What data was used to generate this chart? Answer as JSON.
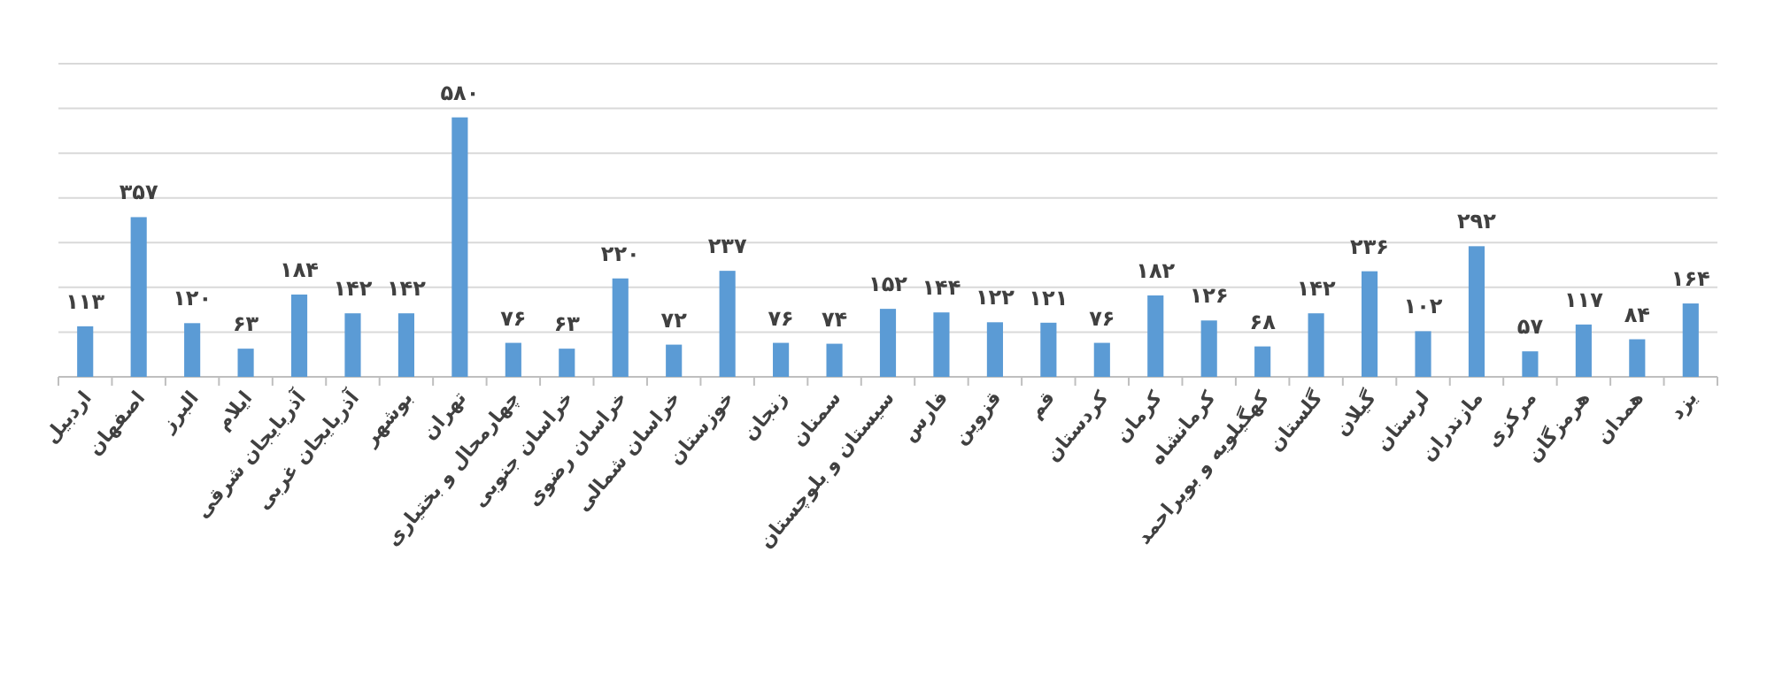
{
  "chart_data": {
    "type": "bar",
    "categories": [
      "اردبیل",
      "اصفهان",
      "البرز",
      "ایلام",
      "آذربایجان شرقی",
      "آذربایجان غربی",
      "بوشهر",
      "تهران",
      "چهارمحال و بختیاری",
      "خراسان جنوبی",
      "خراسان رضوی",
      "خراسان شمالی",
      "خوزستان",
      "زنجان",
      "سمنان",
      "سیستان و بلوچستان",
      "فارس",
      "قزوین",
      "قم",
      "کردستان",
      "کرمان",
      "کرمانشاه",
      "کهگیلویه و بویراحمد",
      "گلستان",
      "گیلان",
      "لرستان",
      "مازندران",
      "مرکزی",
      "هرمزگان",
      "همدان",
      "یزد"
    ],
    "values": [
      113,
      357,
      120,
      63,
      184,
      142,
      142,
      580,
      76,
      63,
      220,
      72,
      237,
      76,
      74,
      152,
      144,
      122,
      121,
      76,
      182,
      126,
      68,
      142,
      236,
      102,
      292,
      57,
      117,
      84,
      164
    ],
    "value_labels": [
      "۱۱۳",
      "۳۵۷",
      "۱۲۰",
      "۶۳",
      "۱۸۴",
      "۱۴۲",
      "۱۴۲",
      "۵۸۰",
      "۷۶",
      "۶۳",
      "۲۲۰",
      "۷۲",
      "۲۳۷",
      "۷۶",
      "۷۴",
      "۱۵۲",
      "۱۴۴",
      "۱۲۲",
      "۱۲۱",
      "۷۶",
      "۱۸۲",
      "۱۲۶",
      "۶۸",
      "۱۴۲",
      "۲۳۶",
      "۱۰۲",
      "۲۹۲",
      "۵۷",
      "۱۱۷",
      "۸۴",
      "۱۶۴"
    ],
    "color": "#5b9bd5",
    "ylim": [
      0,
      700
    ],
    "yticks": [
      {
        "value": 0,
        "label": null
      },
      {
        "value": 100,
        "label": null
      },
      {
        "value": 200,
        "label": null
      },
      {
        "value": 300,
        "label": null
      },
      {
        "value": 400,
        "label": null
      },
      {
        "value": 500,
        "label": null
      },
      {
        "value": 600,
        "label": null
      },
      {
        "value": 700,
        "label": null
      }
    ],
    "grid": "y"
  }
}
